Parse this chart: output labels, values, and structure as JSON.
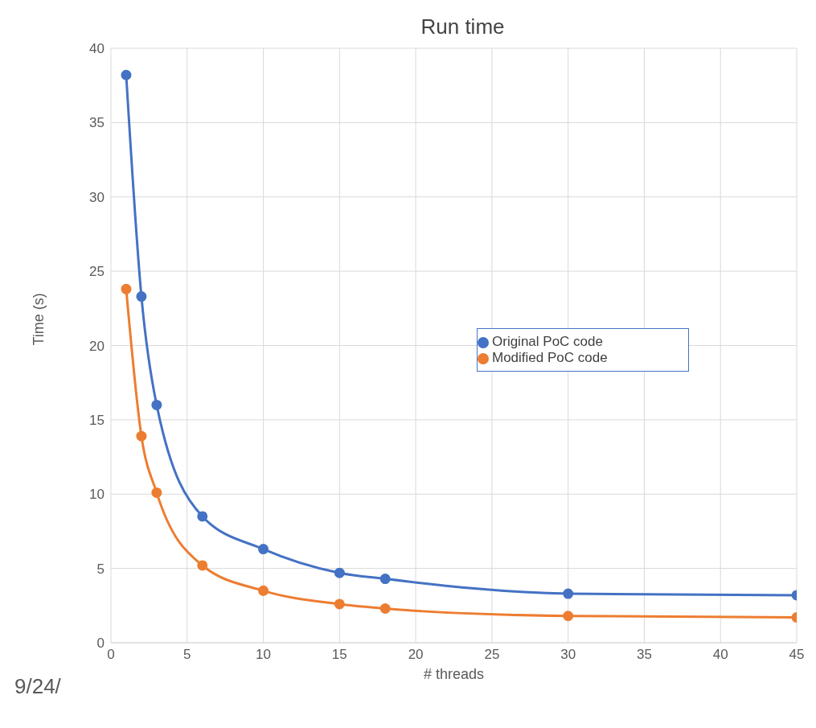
{
  "chart_data": {
    "type": "line",
    "title": "Run time",
    "xlabel": "# threads",
    "ylabel": "Time (s)",
    "x": [
      1,
      2,
      3,
      6,
      10,
      15,
      18,
      30,
      45
    ],
    "series": [
      {
        "name": "Original PoC code",
        "color": "#4472c4",
        "values": [
          38.2,
          23.3,
          16.0,
          8.5,
          6.3,
          4.7,
          4.3,
          3.3,
          3.2
        ]
      },
      {
        "name": "Modified PoC code",
        "color": "#ed7d31",
        "values": [
          23.8,
          13.9,
          10.1,
          5.2,
          3.5,
          2.6,
          2.3,
          1.8,
          1.7
        ]
      }
    ],
    "xlim": [
      0,
      45
    ],
    "xticks": [
      0,
      5,
      10,
      15,
      20,
      25,
      30,
      35,
      40,
      45
    ],
    "ylim": [
      0,
      40
    ],
    "yticks": [
      0,
      5,
      10,
      15,
      20,
      25,
      30,
      35,
      40
    ],
    "grid": true,
    "legend": "right",
    "marker": "circle",
    "line_style": "solid",
    "annotations": [
      "9/24/"
    ]
  }
}
